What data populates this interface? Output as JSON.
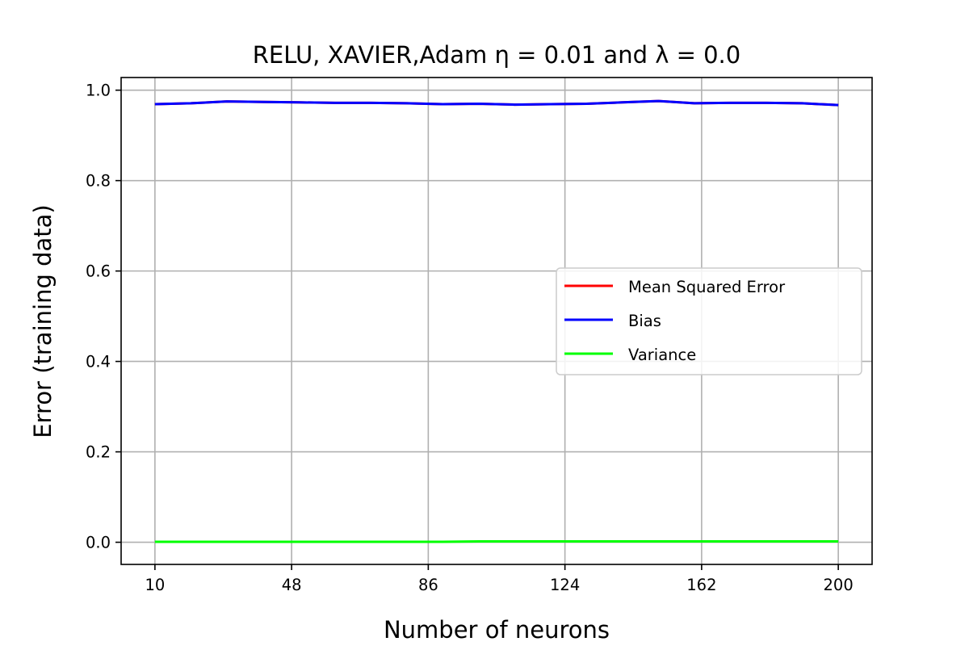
{
  "chart_data": {
    "type": "line",
    "title": "RELU, XAVIER,Adam η = 0.01 and λ = 0.0",
    "xlabel": "Number of neurons",
    "ylabel": "Error (training data)",
    "xlim": [
      0.6,
      209.4
    ],
    "ylim": [
      -0.049,
      1.028
    ],
    "xticks": [
      10,
      48,
      86,
      124,
      162,
      200
    ],
    "yticks": [
      0.0,
      0.2,
      0.4,
      0.6,
      0.8,
      1.0
    ],
    "xtick_labels": [
      "10",
      "48",
      "86",
      "124",
      "162",
      "200"
    ],
    "ytick_labels": [
      "0.0",
      "0.2",
      "0.4",
      "0.6",
      "0.8",
      "1.0"
    ],
    "grid": true,
    "legend_position": "center-right",
    "x": [
      10,
      20,
      30,
      40,
      50,
      60,
      70,
      80,
      90,
      100,
      110,
      120,
      130,
      140,
      150,
      160,
      170,
      180,
      190,
      200
    ],
    "series": [
      {
        "name": "Mean Squared Error",
        "color": "#ff0000",
        "values": [
          0.969,
          0.971,
          0.975,
          0.974,
          0.973,
          0.972,
          0.972,
          0.971,
          0.969,
          0.97,
          0.968,
          0.969,
          0.97,
          0.973,
          0.976,
          0.971,
          0.972,
          0.972,
          0.971,
          0.967
        ]
      },
      {
        "name": "Bias",
        "color": "#0000ff",
        "values": [
          0.969,
          0.971,
          0.975,
          0.974,
          0.973,
          0.972,
          0.972,
          0.971,
          0.969,
          0.97,
          0.968,
          0.969,
          0.97,
          0.973,
          0.976,
          0.971,
          0.972,
          0.972,
          0.971,
          0.967
        ]
      },
      {
        "name": "Variance",
        "color": "#00ff00",
        "values": [
          0.001,
          0.001,
          0.001,
          0.001,
          0.001,
          0.001,
          0.001,
          0.001,
          0.001,
          0.002,
          0.002,
          0.002,
          0.002,
          0.002,
          0.002,
          0.002,
          0.002,
          0.002,
          0.002,
          0.002
        ]
      }
    ]
  }
}
